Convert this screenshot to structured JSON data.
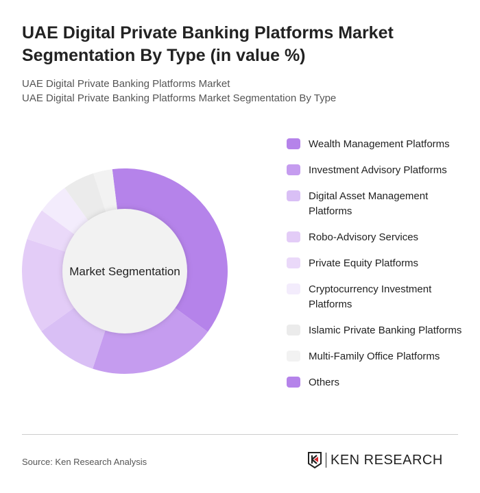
{
  "title": "UAE Digital Private Banking Platforms Market Segmentation By Type (in value %)",
  "subtitle1": "UAE Digital Private Banking Platforms Market",
  "subtitle2": "UAE Digital Private Banking Platforms Market Segmentation By Type",
  "source": "Source: Ken Research Analysis",
  "logo_text": "KEN RESEARCH",
  "chart_data": {
    "type": "pie",
    "donut": true,
    "center_label": "Market Segmentation",
    "legend_position": "right",
    "categories": [
      "Wealth Management Platforms",
      "Investment Advisory Platforms",
      "Digital Asset Management Platforms",
      "Robo-Advisory Services",
      "Private Equity Platforms",
      "Cryptocurrency Investment Platforms",
      "Islamic Private Banking Platforms",
      "Multi-Family Office Platforms",
      "Others"
    ],
    "values": [
      37,
      20,
      10,
      15,
      5,
      5,
      5,
      3,
      0
    ],
    "colors": [
      "#b583ea",
      "#c59cef",
      "#d9bff5",
      "#e3ccf7",
      "#ead9f9",
      "#f3ecfc",
      "#ebebeb",
      "#f2f2f2",
      "#b583ea"
    ]
  }
}
